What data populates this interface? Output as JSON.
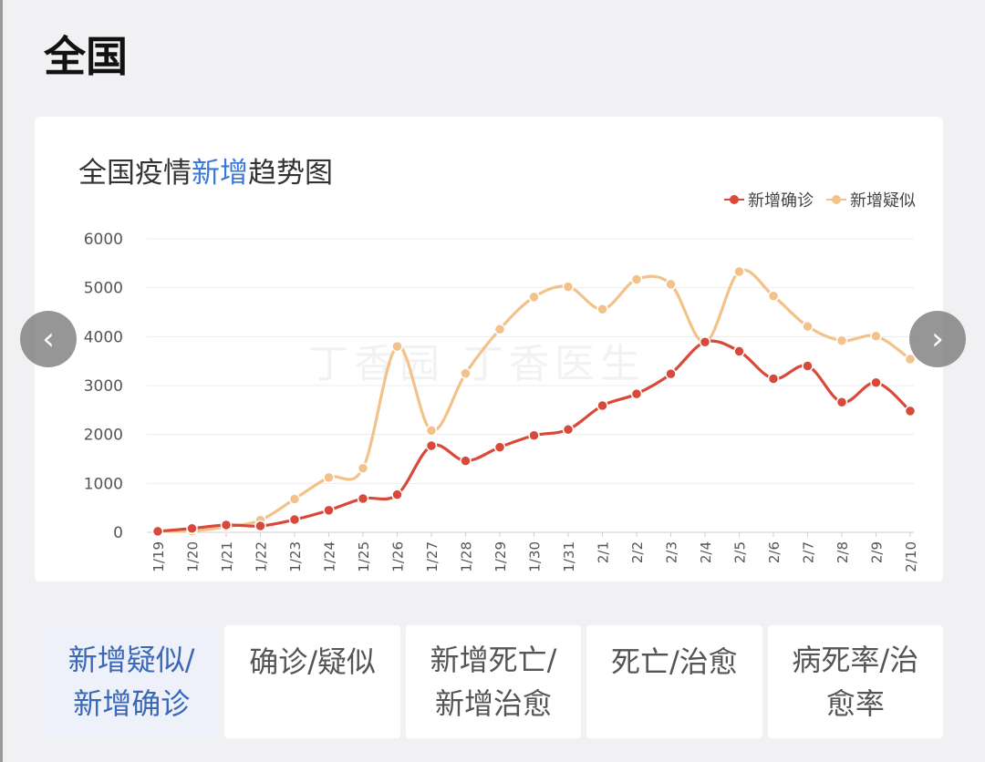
{
  "page": {
    "title": "全国"
  },
  "chart": {
    "title_part1": "全国疫情",
    "title_highlight": "新增",
    "title_part2": "趋势图",
    "watermark": "丁香园 丁香医生"
  },
  "nav": {
    "prev_icon": "chevron-left-icon",
    "next_icon": "chevron-right-icon",
    "prev_glyph": "‹",
    "next_glyph": "›"
  },
  "tabs": [
    {
      "line1": "新增疑似/",
      "line2": "新增确诊",
      "active": true
    },
    {
      "line1": "确诊/疑似",
      "line2": "",
      "active": false
    },
    {
      "line1": "新增死亡/",
      "line2": "新增治愈",
      "active": false
    },
    {
      "line1": "死亡/治愈",
      "line2": "",
      "active": false
    },
    {
      "line1": "病死率/治",
      "line2": "愈率",
      "active": false
    }
  ],
  "colors": {
    "confirmed": "#d9493a",
    "suspected": "#f2c28a",
    "highlight": "#3b79d9"
  },
  "chart_data": {
    "type": "line",
    "title": "全国疫情新增趋势图",
    "x": [
      "1/19",
      "1/20",
      "1/21",
      "1/22",
      "1/23",
      "1/24",
      "1/25",
      "1/26",
      "1/27",
      "1/28",
      "1/29",
      "1/30",
      "1/31",
      "2/1",
      "2/2",
      "2/3",
      "2/4",
      "2/5",
      "2/6",
      "2/7",
      "2/8",
      "2/9",
      "2/10"
    ],
    "yticks": [
      0,
      1000,
      2000,
      3000,
      4000,
      5000,
      6000
    ],
    "ylim": [
      0,
      6000
    ],
    "grid": true,
    "legend_position": "top-right",
    "series": [
      {
        "name": "新增确诊",
        "color": "#d9493a",
        "values": [
          20,
          80,
          150,
          130,
          260,
          450,
          690,
          770,
          1770,
          1460,
          1740,
          1980,
          2100,
          2590,
          2830,
          3240,
          3890,
          3700,
          3140,
          3400,
          2660,
          3060,
          2480
        ]
      },
      {
        "name": "新增疑似",
        "color": "#f2c28a",
        "values": [
          20,
          30,
          110,
          250,
          680,
          1120,
          1310,
          3800,
          2080,
          3250,
          4150,
          4810,
          5020,
          4560,
          5170,
          5070,
          3880,
          5330,
          4830,
          4210,
          3920,
          4010,
          3540
        ]
      }
    ]
  }
}
